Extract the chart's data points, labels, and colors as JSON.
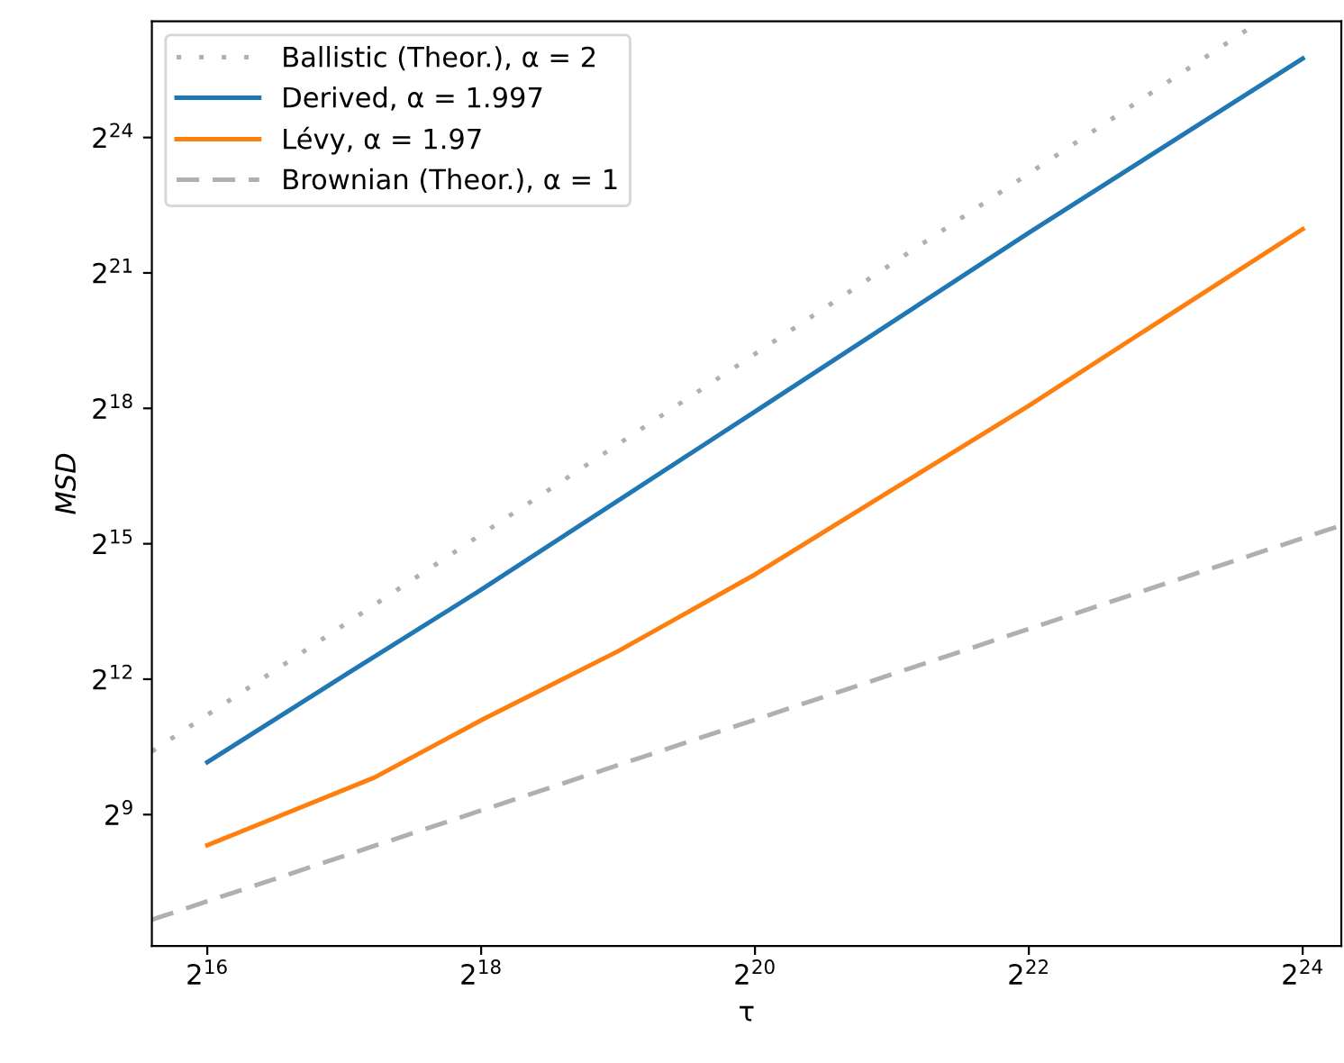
{
  "chart_data": {
    "type": "line",
    "xlabel": "τ",
    "ylabel": "MSD",
    "log": "xy",
    "grid": false,
    "legend": "top left",
    "xlim": [
      49500,
      20400000
    ],
    "ylim": [
      68,
      100000000
    ],
    "xticks": [
      {
        "value": 65536,
        "label": "2$^{16}$"
      },
      {
        "value": 262144,
        "label": "2$^{18}$"
      },
      {
        "value": 1048576,
        "label": "2$^{20}$"
      },
      {
        "value": 4194304,
        "label": "2$^{22}$"
      },
      {
        "value": 16777216,
        "label": "2$^{24}$"
      }
    ],
    "yticks": [
      {
        "value": 512,
        "label": "2$^{9}$"
      },
      {
        "value": 4096,
        "label": "2$^{12}$"
      },
      {
        "value": 32768,
        "label": "2$^{15}$"
      },
      {
        "value": 262144,
        "label": "2$^{18}$"
      },
      {
        "value": 2097152,
        "label": "2$^{21}$"
      },
      {
        "value": 16777216,
        "label": "2$^{24}$"
      }
    ],
    "series": [
      {
        "name": "Ballistic (Theor.), α = 2",
        "color": "#b0b0b0",
        "line_style": "dotted",
        "x": [
          49500,
          13440000
        ],
        "values": [
          1351,
          98900000
        ]
      },
      {
        "name": "Derived, α = 1.997",
        "color": "#1f77b4",
        "line_style": "solid",
        "x": [
          65536,
          131072,
          262144,
          1048576,
          4194304,
          16777216
        ],
        "values": [
          1144,
          4330,
          16160,
          249700,
          3886000,
          56430000
        ]
      },
      {
        "name": "Lévy, α = 1.97",
        "color": "#ff7f0e",
        "line_style": "solid",
        "x": [
          65536,
          152700,
          262144,
          524288,
          1048576,
          2097152,
          4194304,
          8388608,
          16777216
        ],
        "values": [
          320,
          904,
          2180,
          6295,
          20450,
          74760,
          273300,
          1063300,
          4108000
        ]
      },
      {
        "name": "Brownian (Theor.), α = 1",
        "color": "#b0b0b0",
        "line_style": "dashed",
        "x": [
          49500,
          20400000
        ],
        "values": [
          102,
          43500
        ]
      }
    ]
  }
}
